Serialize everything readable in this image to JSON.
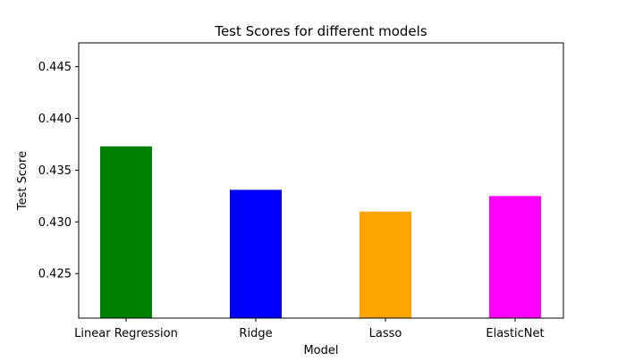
{
  "chart_data": {
    "type": "bar",
    "title": "Test Scores for different models",
    "xlabel": "Model",
    "ylabel": "Test Score",
    "categories": [
      "Linear Regression",
      "Ridge",
      "Lasso",
      "ElasticNet"
    ],
    "values": [
      0.4373,
      0.4331,
      0.431,
      0.4325
    ],
    "colors": [
      "#008000",
      "#0000ff",
      "#ffa500",
      "#ff00ff"
    ],
    "ylim": [
      0.4207,
      0.4473
    ],
    "yticks": [
      0.425,
      0.43,
      0.435,
      0.44,
      0.445
    ],
    "ytick_labels": [
      "0.425",
      "0.430",
      "0.435",
      "0.440",
      "0.445"
    ],
    "grid": false,
    "legend": "none"
  }
}
